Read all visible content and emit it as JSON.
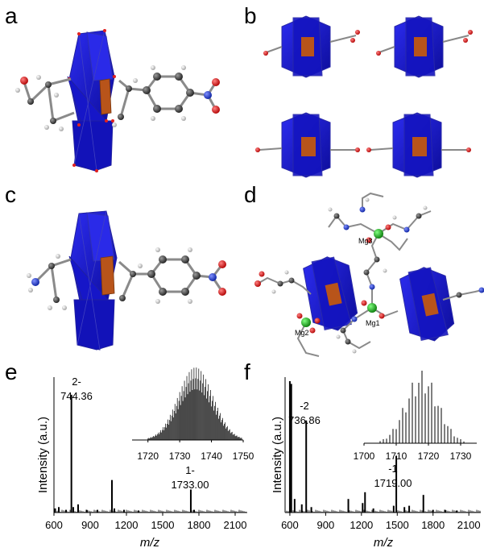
{
  "panels": {
    "a": "a",
    "b": "b",
    "c": "c",
    "d": "d",
    "e": "e",
    "f": "f"
  },
  "panel_d": {
    "atom_labels": [
      "Mg3",
      "Mg2",
      "Mg1"
    ]
  },
  "colors": {
    "polyhedra": "#1a1ad8",
    "polyhedra_edge": "#2525a0",
    "center_octahedron": "#b8541a",
    "carbon": "#3a3a3a",
    "hydrogen": "#d8d8d8",
    "oxygen": "#e01010",
    "nitrogen": "#1a3ad8",
    "magnesium": "#18a018"
  },
  "chart_data": [
    {
      "panel": "e",
      "type": "line",
      "xlabel": "m/z",
      "ylabel": "Intensity (a.u.)",
      "xlim": [
        600,
        2200
      ],
      "xticks": [
        "600",
        "900",
        "1200",
        "1500",
        "1800",
        "2100"
      ],
      "series": [
        {
          "peaks": [
            {
              "x": 610,
              "y": 0.03
            },
            {
              "x": 640,
              "y": 0.04
            },
            {
              "x": 700,
              "y": 0.02
            },
            {
              "x": 744.36,
              "y": 0.87
            },
            {
              "x": 760,
              "y": 0.04
            },
            {
              "x": 800,
              "y": 0.06
            },
            {
              "x": 870,
              "y": 0.02
            },
            {
              "x": 960,
              "y": 0.02
            },
            {
              "x": 1080,
              "y": 0.24
            },
            {
              "x": 1100,
              "y": 0.03
            },
            {
              "x": 1180,
              "y": 0.02
            },
            {
              "x": 1300,
              "y": 0.015
            },
            {
              "x": 1733.0,
              "y": 0.17
            },
            {
              "x": 1760,
              "y": 0.02
            }
          ]
        }
      ],
      "annotations": [
        {
          "charge": "2-",
          "value": "744.36"
        },
        {
          "charge": "1-",
          "value": "1733.00"
        }
      ],
      "inset": {
        "type": "bar",
        "xlim": [
          1715,
          1750
        ],
        "xticks": [
          "1720",
          "1730",
          "1740",
          "1750"
        ],
        "center": 1735,
        "width": 5.5
      }
    },
    {
      "panel": "f",
      "type": "line",
      "xlabel": "m/z",
      "ylabel": "Intensity (a.u.)",
      "xlim": [
        560,
        2200
      ],
      "xticks": [
        "600",
        "900",
        "1200",
        "1500",
        "1800",
        "2100"
      ],
      "series": [
        {
          "peaks": [
            {
              "x": 600,
              "y": 0.97
            },
            {
              "x": 612,
              "y": 0.95
            },
            {
              "x": 640,
              "y": 0.1
            },
            {
              "x": 700,
              "y": 0.06
            },
            {
              "x": 736.86,
              "y": 0.68
            },
            {
              "x": 780,
              "y": 0.04
            },
            {
              "x": 1090,
              "y": 0.1
            },
            {
              "x": 1210,
              "y": 0.07
            },
            {
              "x": 1230,
              "y": 0.15
            },
            {
              "x": 1300,
              "y": 0.03
            },
            {
              "x": 1470,
              "y": 0.05
            },
            {
              "x": 1492,
              "y": 0.42
            },
            {
              "x": 1560,
              "y": 0.04
            },
            {
              "x": 1600,
              "y": 0.05
            },
            {
              "x": 1719.0,
              "y": 0.13
            },
            {
              "x": 1800,
              "y": 0.02
            },
            {
              "x": 1900,
              "y": 0.02
            },
            {
              "x": 2000,
              "y": 0.015
            }
          ]
        }
      ],
      "annotations": [
        {
          "charge": "-2",
          "value": "736.86"
        },
        {
          "charge": "-1",
          "value": "1719.00"
        }
      ],
      "inset": {
        "type": "bar",
        "xlim": [
          1700,
          1735
        ],
        "xticks": [
          "1700",
          "1710",
          "1720",
          "1730"
        ],
        "center": 1718,
        "width": 5
      }
    }
  ]
}
